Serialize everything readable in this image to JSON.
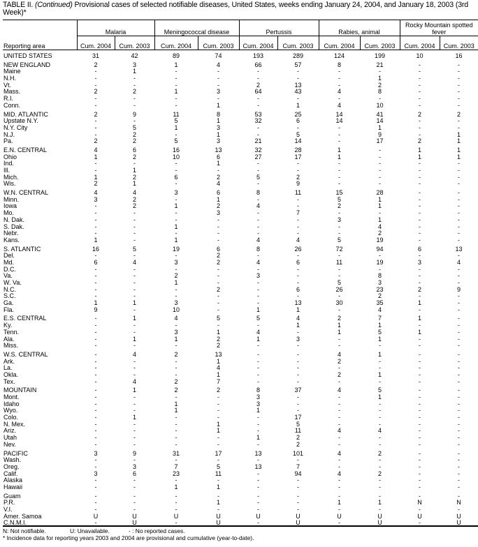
{
  "title": {
    "prefix": "TABLE II. ",
    "continued": "(Continued)",
    "text": " Provisional cases of selected notifiable diseases, United States, weeks ending January 24, 2004, and January 18, 2003 (3rd Week)*"
  },
  "header": {
    "area_label": "Reporting area",
    "groups": [
      "Malaria",
      "Meningococcal disease",
      "Pertussis",
      "Rabies, animal",
      "Rocky Mountain spotted fever"
    ],
    "sub": [
      "Cum. 2004",
      "Cum. 2003"
    ]
  },
  "sections": [
    [
      [
        "UNITED STATES",
        "31",
        "42",
        "89",
        "74",
        "193",
        "289",
        "124",
        "199",
        "10",
        "16"
      ]
    ],
    [
      [
        "NEW ENGLAND",
        "2",
        "3",
        "1",
        "4",
        "66",
        "57",
        "8",
        "21",
        "-",
        "-"
      ],
      [
        "Maine",
        "-",
        "1",
        "-",
        "-",
        "-",
        "-",
        "-",
        "-",
        "-",
        "-"
      ],
      [
        "N.H.",
        "-",
        "-",
        "-",
        "-",
        "-",
        "-",
        "-",
        "1",
        "-",
        "-"
      ],
      [
        "Vt.",
        "-",
        "-",
        "-",
        "-",
        "2",
        "13",
        "-",
        "2",
        "-",
        "-"
      ],
      [
        "Mass.",
        "2",
        "2",
        "1",
        "3",
        "64",
        "43",
        "4",
        "8",
        "-",
        "-"
      ],
      [
        "R.I.",
        "-",
        "-",
        "-",
        "-",
        "-",
        "-",
        "-",
        "-",
        "-",
        "-"
      ],
      [
        "Conn.",
        "-",
        "-",
        "-",
        "1",
        "-",
        "1",
        "4",
        "10",
        "-",
        "-"
      ]
    ],
    [
      [
        "MID. ATLANTIC",
        "2",
        "9",
        "11",
        "8",
        "53",
        "25",
        "14",
        "41",
        "2",
        "2"
      ],
      [
        "Upstate N.Y.",
        "-",
        "-",
        "5",
        "1",
        "32",
        "6",
        "14",
        "14",
        "-",
        "-"
      ],
      [
        "N.Y. City",
        "-",
        "5",
        "1",
        "3",
        "-",
        "-",
        "-",
        "1",
        "-",
        "-"
      ],
      [
        "N.J.",
        "-",
        "2",
        "-",
        "1",
        "-",
        "5",
        "-",
        "9",
        "-",
        "1"
      ],
      [
        "Pa.",
        "2",
        "2",
        "5",
        "3",
        "21",
        "14",
        "-",
        "17",
        "2",
        "1"
      ]
    ],
    [
      [
        "E.N. CENTRAL",
        "4",
        "6",
        "16",
        "13",
        "32",
        "28",
        "1",
        "-",
        "1",
        "1"
      ],
      [
        "Ohio",
        "1",
        "2",
        "10",
        "6",
        "27",
        "17",
        "1",
        "-",
        "1",
        "1"
      ],
      [
        "Ind.",
        "-",
        "-",
        "-",
        "1",
        "-",
        "-",
        "-",
        "-",
        "-",
        "-"
      ],
      [
        "Ill.",
        "-",
        "1",
        "-",
        "-",
        "-",
        "-",
        "-",
        "-",
        "-",
        "-"
      ],
      [
        "Mich.",
        "1",
        "2",
        "6",
        "2",
        "5",
        "2",
        "-",
        "-",
        "-",
        "-"
      ],
      [
        "Wis.",
        "2",
        "1",
        "-",
        "4",
        "-",
        "9",
        "-",
        "-",
        "-",
        "-"
      ]
    ],
    [
      [
        "W.N. CENTRAL",
        "4",
        "4",
        "3",
        "6",
        "8",
        "11",
        "15",
        "28",
        "-",
        "-"
      ],
      [
        "Minn.",
        "3",
        "2",
        "-",
        "1",
        "-",
        "-",
        "5",
        "1",
        "-",
        "-"
      ],
      [
        "Iowa",
        "-",
        "2",
        "1",
        "2",
        "4",
        "-",
        "2",
        "1",
        "-",
        "-"
      ],
      [
        "Mo.",
        "-",
        "-",
        "-",
        "3",
        "-",
        "7",
        "-",
        "-",
        "-",
        "-"
      ],
      [
        "N. Dak.",
        "-",
        "-",
        "-",
        "-",
        "-",
        "-",
        "3",
        "1",
        "-",
        "-"
      ],
      [
        "S. Dak.",
        "-",
        "-",
        "1",
        "-",
        "-",
        "-",
        "-",
        "4",
        "-",
        "-"
      ],
      [
        "Nebr.",
        "-",
        "-",
        "-",
        "-",
        "-",
        "-",
        "-",
        "2",
        "-",
        "-"
      ],
      [
        "Kans.",
        "1",
        "-",
        "1",
        "-",
        "4",
        "4",
        "5",
        "19",
        "-",
        "-"
      ]
    ],
    [
      [
        "S. ATLANTIC",
        "16",
        "5",
        "19",
        "6",
        "8",
        "26",
        "72",
        "94",
        "6",
        "13"
      ],
      [
        "Del.",
        "-",
        "-",
        "-",
        "2",
        "-",
        "-",
        "-",
        "-",
        "-",
        "-"
      ],
      [
        "Md.",
        "6",
        "4",
        "3",
        "2",
        "4",
        "6",
        "11",
        "19",
        "3",
        "4"
      ],
      [
        "D.C.",
        "-",
        "-",
        "-",
        "-",
        "-",
        "-",
        "-",
        "-",
        "-",
        "-"
      ],
      [
        "Va.",
        "-",
        "-",
        "2",
        "-",
        "3",
        "-",
        "-",
        "8",
        "-",
        "-"
      ],
      [
        "W. Va.",
        "-",
        "-",
        "1",
        "-",
        "-",
        "-",
        "5",
        "3",
        "-",
        "-"
      ],
      [
        "N.C.",
        "-",
        "-",
        "-",
        "2",
        "-",
        "6",
        "26",
        "23",
        "2",
        "9"
      ],
      [
        "S.C.",
        "-",
        "-",
        "-",
        "-",
        "-",
        "-",
        "-",
        "2",
        "-",
        "-"
      ],
      [
        "Ga.",
        "1",
        "1",
        "3",
        "-",
        "-",
        "13",
        "30",
        "35",
        "1",
        "-"
      ],
      [
        "Fla.",
        "9",
        "-",
        "10",
        "-",
        "1",
        "1",
        "-",
        "4",
        "-",
        "-"
      ]
    ],
    [
      [
        "E.S. CENTRAL",
        "-",
        "1",
        "4",
        "5",
        "5",
        "4",
        "2",
        "7",
        "1",
        "-"
      ],
      [
        "Ky.",
        "-",
        "-",
        "-",
        "-",
        "-",
        "1",
        "1",
        "1",
        "-",
        "-"
      ],
      [
        "Tenn.",
        "-",
        "-",
        "3",
        "1",
        "4",
        "-",
        "1",
        "5",
        "1",
        "-"
      ],
      [
        "Ala.",
        "-",
        "1",
        "1",
        "2",
        "1",
        "3",
        "-",
        "1",
        "-",
        "-"
      ],
      [
        "Miss.",
        "-",
        "-",
        "-",
        "2",
        "-",
        "-",
        "-",
        "-",
        "-",
        "-"
      ]
    ],
    [
      [
        "W.S. CENTRAL",
        "-",
        "4",
        "2",
        "13",
        "-",
        "-",
        "4",
        "1",
        "-",
        "-"
      ],
      [
        "Ark.",
        "-",
        "-",
        "-",
        "1",
        "-",
        "-",
        "2",
        "-",
        "-",
        "-"
      ],
      [
        "La.",
        "-",
        "-",
        "-",
        "4",
        "-",
        "-",
        "-",
        "-",
        "-",
        "-"
      ],
      [
        "Okla.",
        "-",
        "-",
        "-",
        "1",
        "-",
        "-",
        "2",
        "1",
        "-",
        "-"
      ],
      [
        "Tex.",
        "-",
        "4",
        "2",
        "7",
        "-",
        "-",
        "-",
        "-",
        "-",
        "-"
      ]
    ],
    [
      [
        "MOUNTAIN",
        "-",
        "1",
        "2",
        "2",
        "8",
        "37",
        "4",
        "5",
        "-",
        "-"
      ],
      [
        "Mont.",
        "-",
        "-",
        "-",
        "-",
        "3",
        "-",
        "-",
        "1",
        "-",
        "-"
      ],
      [
        "Idaho",
        "-",
        "-",
        "1",
        "-",
        "3",
        "-",
        "-",
        "-",
        "-",
        "-"
      ],
      [
        "Wyo.",
        "-",
        "-",
        "1",
        "-",
        "1",
        "-",
        "-",
        "-",
        "-",
        "-"
      ],
      [
        "Colo.",
        "-",
        "1",
        "-",
        "-",
        "-",
        "17",
        "-",
        "-",
        "-",
        "-"
      ],
      [
        "N. Mex.",
        "-",
        "-",
        "-",
        "1",
        "-",
        "5",
        "-",
        "-",
        "-",
        "-"
      ],
      [
        "Ariz.",
        "-",
        "-",
        "-",
        "1",
        "-",
        "11",
        "4",
        "4",
        "-",
        "-"
      ],
      [
        "Utah",
        "-",
        "-",
        "-",
        "-",
        "1",
        "2",
        "-",
        "-",
        "-",
        "-"
      ],
      [
        "Nev.",
        "-",
        "-",
        "-",
        "-",
        "-",
        "2",
        "-",
        "-",
        "-",
        "-"
      ]
    ],
    [
      [
        "PACIFIC",
        "3",
        "9",
        "31",
        "17",
        "13",
        "101",
        "4",
        "2",
        "-",
        "-"
      ],
      [
        "Wash.",
        "-",
        "-",
        "-",
        "-",
        "-",
        "-",
        "-",
        "-",
        "-",
        "-"
      ],
      [
        "Oreg.",
        "-",
        "3",
        "7",
        "5",
        "13",
        "7",
        "-",
        "-",
        "-",
        "-"
      ],
      [
        "Calif.",
        "3",
        "6",
        "23",
        "11",
        "-",
        "94",
        "4",
        "2",
        "-",
        "-"
      ],
      [
        "Alaska",
        "-",
        "-",
        "-",
        "-",
        "-",
        "-",
        "-",
        "-",
        "-",
        "-"
      ],
      [
        "Hawaii",
        "-",
        "-",
        "1",
        "1",
        "-",
        "-",
        "-",
        "-",
        "-",
        "-"
      ]
    ],
    [
      [
        "Guam",
        "-",
        "-",
        "-",
        "-",
        "-",
        "-",
        "-",
        "-",
        "-",
        "-"
      ],
      [
        "P.R.",
        "-",
        "-",
        "-",
        "1",
        "-",
        "-",
        "1",
        "1",
        "N",
        "N"
      ],
      [
        "V.I.",
        "-",
        "-",
        "-",
        "-",
        "-",
        "-",
        "-",
        "-",
        "-",
        "-"
      ],
      [
        "Amer. Samoa",
        "U",
        "U",
        "U",
        "U",
        "U",
        "U",
        "U",
        "U",
        "U",
        "U"
      ],
      [
        "C.N.M.I.",
        "-",
        "U",
        "-",
        "U",
        "-",
        "U",
        "-",
        "U",
        "-",
        "U"
      ]
    ]
  ],
  "footnotes": {
    "n": "N: Not notifiable.",
    "u": "U: Unavailable.",
    "dash": "- : No reported cases.",
    "star": "* Incidence data for reporting years 2003 and 2004 are provisional and cumulative (year-to-date)."
  }
}
